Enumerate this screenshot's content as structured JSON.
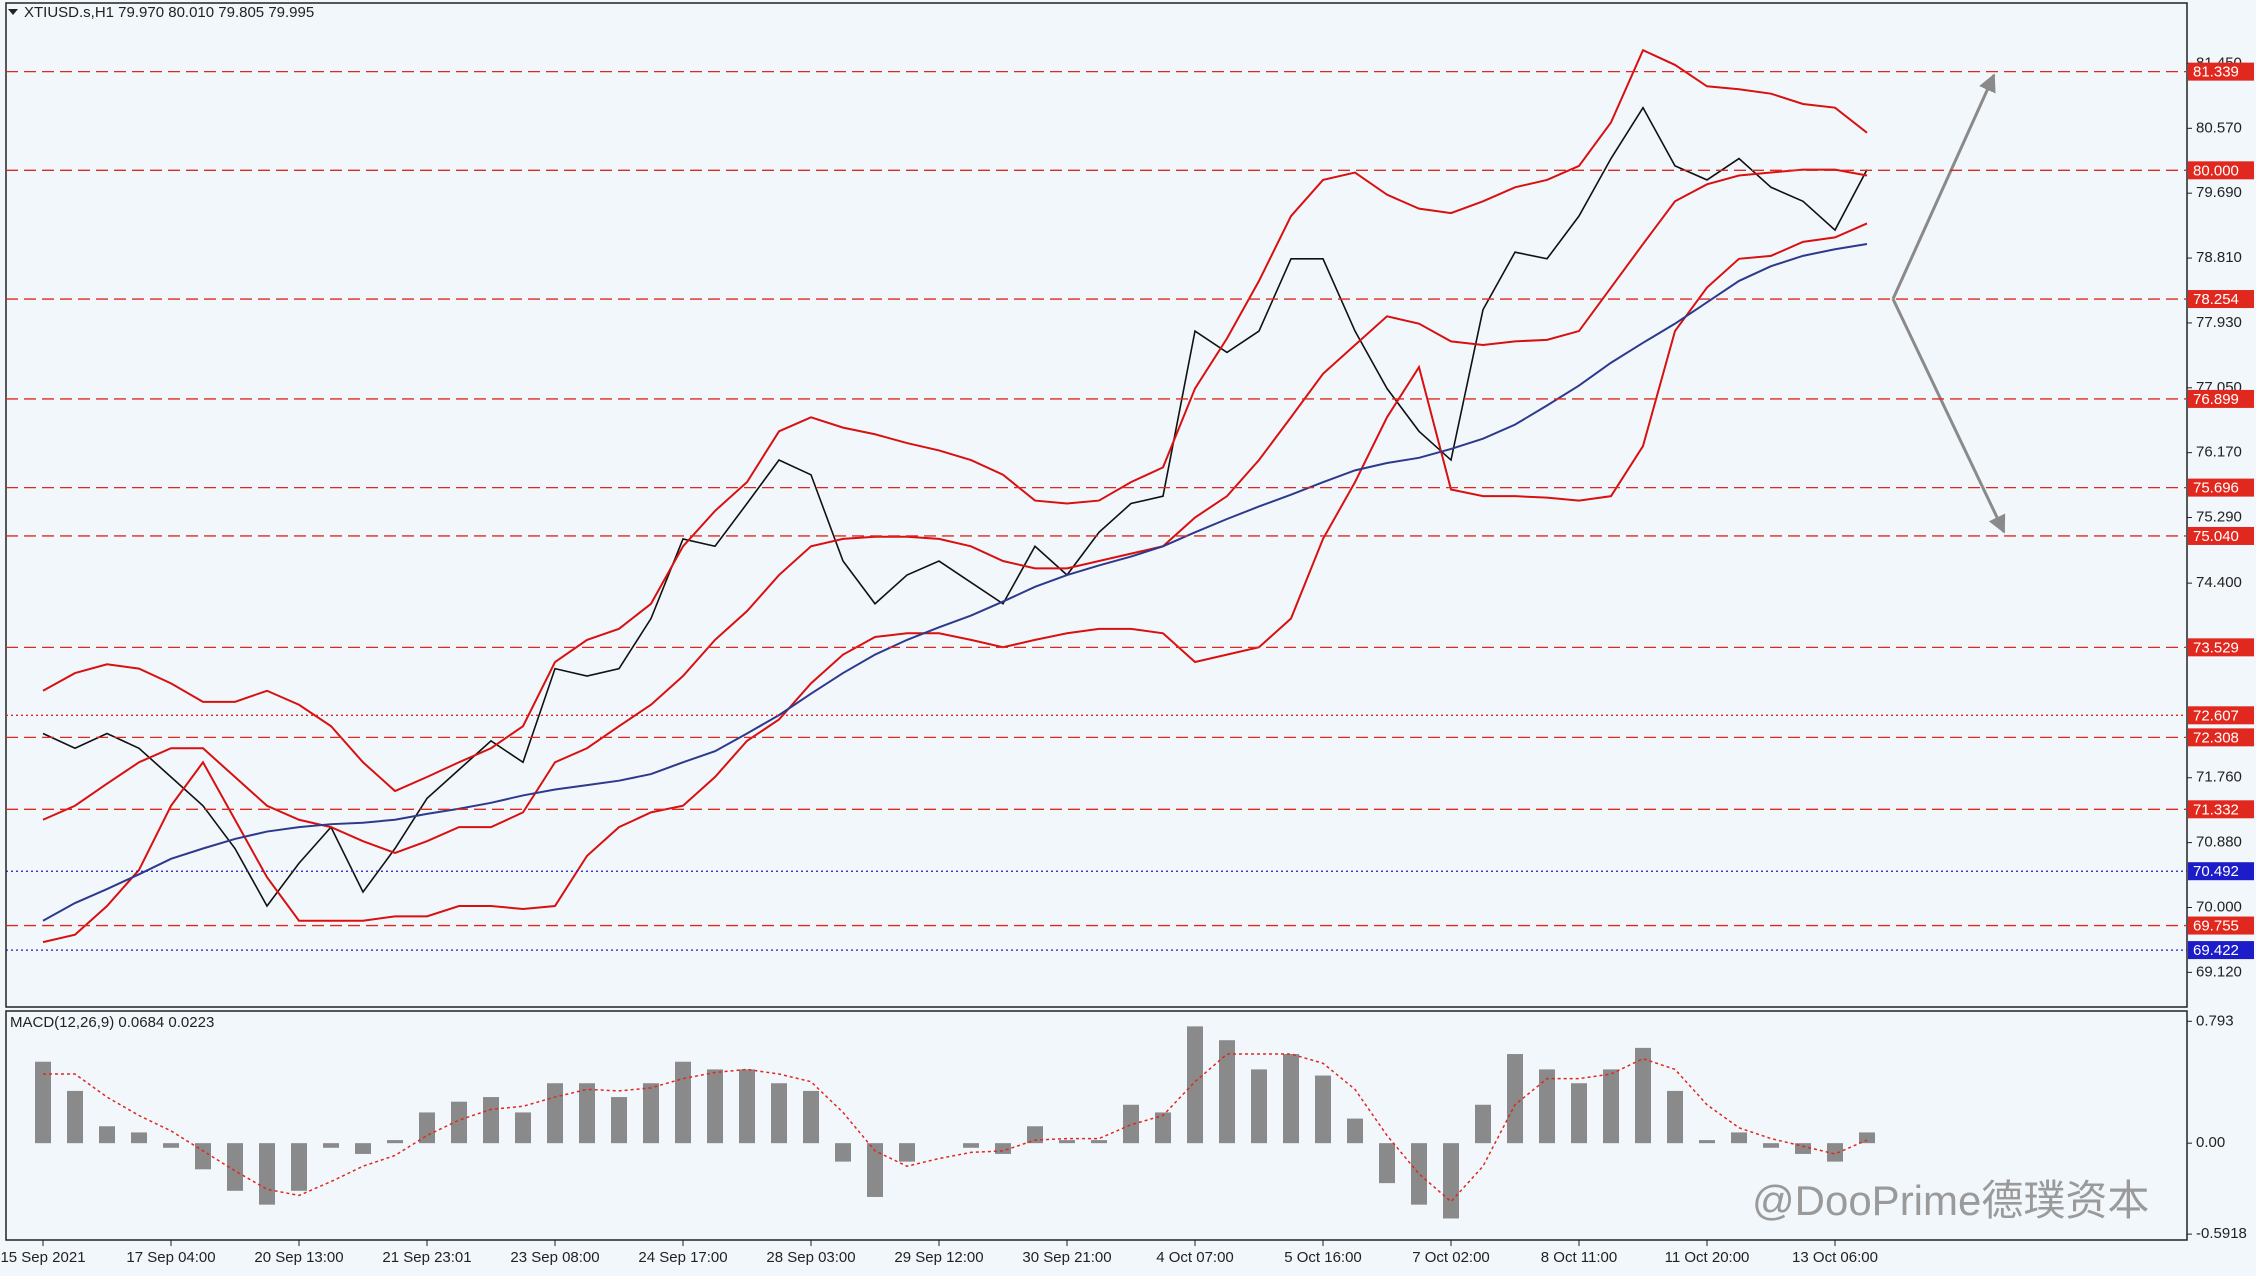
{
  "chart_data": [
    {
      "type": "line",
      "title": "XTIUSD.s,H1  79.970 80.010 79.805 79.995",
      "watermark": "@DooPrime德璞资本",
      "categories": [
        "15 Sep 2021",
        null,
        null,
        null,
        "17 Sep 04:00",
        null,
        null,
        null,
        "20 Sep 13:00",
        null,
        null,
        null,
        "21 Sep 23:01",
        null,
        null,
        null,
        "23 Sep 08:00",
        null,
        null,
        null,
        "24 Sep 17:00",
        null,
        null,
        null,
        "28 Sep 03:00",
        null,
        null,
        null,
        "29 Sep 12:00",
        null,
        null,
        null,
        "30 Sep 21:00",
        null,
        null,
        null,
        "4 Oct 07:00",
        null,
        null,
        null,
        "5 Oct 16:00",
        null,
        null,
        null,
        "7 Oct 02:00",
        null,
        null,
        null,
        "8 Oct 11:00",
        null,
        null,
        null,
        "11 Oct 20:00",
        null,
        null,
        null,
        "13 Oct 06:00",
        null
      ],
      "series": [
        {
          "color": "#111111",
          "values": [
            72.36,
            72.16,
            72.36,
            72.16,
            71.77,
            71.38,
            70.8,
            70.02,
            70.6,
            71.09,
            70.21,
            70.8,
            71.48,
            71.87,
            72.26,
            71.97,
            73.24,
            73.14,
            73.24,
            73.92,
            75.0,
            74.9,
            75.48,
            76.07,
            75.87,
            74.7,
            74.12,
            74.51,
            74.7,
            74.41,
            74.12,
            74.9,
            74.51,
            75.09,
            75.48,
            75.58,
            77.82,
            77.53,
            77.82,
            78.8,
            78.8,
            77.82,
            77.04,
            76.46,
            76.07,
            78.11,
            78.89,
            78.8,
            79.38,
            80.16,
            80.85,
            80.06,
            79.87,
            80.16,
            79.77,
            79.58,
            79.19,
            80.01
          ]
        },
        {
          "color": "#d81010",
          "values": [
            72.94,
            73.18,
            73.3,
            73.24,
            73.04,
            72.79,
            72.79,
            72.94,
            72.75,
            72.46,
            71.97,
            71.58,
            71.77,
            71.97,
            72.16,
            72.46,
            73.33,
            73.63,
            73.78,
            74.12,
            74.9,
            75.38,
            75.77,
            76.46,
            76.65,
            76.51,
            76.42,
            76.3,
            76.2,
            76.07,
            75.87,
            75.52,
            75.48,
            75.52,
            75.77,
            75.97,
            77.04,
            77.72,
            78.5,
            79.38,
            79.87,
            79.97,
            79.67,
            79.48,
            79.42,
            79.58,
            79.77,
            79.87,
            80.06,
            80.65,
            81.63,
            81.43,
            81.14,
            81.1,
            81.04,
            80.9,
            80.85,
            80.51
          ]
        },
        {
          "color": "#d81010",
          "values": [
            71.19,
            71.38,
            71.68,
            71.97,
            72.16,
            72.16,
            71.77,
            71.38,
            71.19,
            71.09,
            70.9,
            70.74,
            70.9,
            71.09,
            71.09,
            71.29,
            71.97,
            72.16,
            72.46,
            72.75,
            73.14,
            73.63,
            74.02,
            74.51,
            74.9,
            75.0,
            75.03,
            75.03,
            75.0,
            74.9,
            74.7,
            74.6,
            74.6,
            74.7,
            74.8,
            74.9,
            75.29,
            75.58,
            76.07,
            76.65,
            77.24,
            77.63,
            78.02,
            77.92,
            77.68,
            77.63,
            77.68,
            77.7,
            77.82,
            78.41,
            79.0,
            79.58,
            79.81,
            79.93,
            79.97,
            80.01,
            80.01,
            79.93
          ]
        },
        {
          "color": "#d81010",
          "values": [
            69.53,
            69.63,
            70.02,
            70.51,
            71.38,
            71.97,
            71.19,
            70.41,
            69.82,
            69.82,
            69.82,
            69.88,
            69.88,
            70.02,
            70.02,
            69.98,
            70.02,
            70.7,
            71.09,
            71.29,
            71.38,
            71.77,
            72.26,
            72.55,
            73.04,
            73.43,
            73.67,
            73.72,
            73.72,
            73.63,
            73.53,
            73.63,
            73.72,
            73.78,
            73.78,
            73.72,
            73.33,
            73.43,
            73.53,
            73.92,
            75.0,
            75.77,
            76.65,
            77.33,
            75.67,
            75.58,
            75.58,
            75.56,
            75.52,
            75.58,
            76.26,
            77.82,
            78.41,
            78.8,
            78.84,
            79.03,
            79.09,
            79.28
          ]
        },
        {
          "color": "#2d3a8c",
          "values": [
            69.82,
            70.06,
            70.25,
            70.45,
            70.66,
            70.8,
            70.93,
            71.03,
            71.09,
            71.13,
            71.15,
            71.19,
            71.27,
            71.34,
            71.42,
            71.52,
            71.6,
            71.66,
            71.72,
            71.81,
            71.97,
            72.12,
            72.36,
            72.61,
            72.9,
            73.18,
            73.43,
            73.63,
            73.8,
            73.96,
            74.15,
            74.35,
            74.51,
            74.64,
            74.76,
            74.9,
            75.09,
            75.27,
            75.44,
            75.6,
            75.77,
            75.93,
            76.03,
            76.1,
            76.22,
            76.36,
            76.55,
            76.81,
            77.08,
            77.39,
            77.66,
            77.92,
            78.21,
            78.5,
            78.7,
            78.84,
            78.93,
            79.0
          ]
        }
      ],
      "levels": {
        "values": [
          81.339,
          80.0,
          78.254,
          76.899,
          75.696,
          75.04,
          73.529,
          72.607,
          72.308,
          71.332,
          70.492,
          69.755,
          69.422
        ],
        "value_labels": [
          "81.339",
          "80.000",
          "78.254",
          "76.899",
          "75.696",
          "75.040",
          "73.529",
          "72.607",
          "72.308",
          "71.332",
          "70.492",
          "69.755",
          "69.422"
        ],
        "colors": [
          "#e0281e",
          "#e0281e",
          "#e0281e",
          "#e0281e",
          "#e0281e",
          "#e0281e",
          "#e0281e",
          "#e0281e",
          "#e0281e",
          "#e0281e",
          "#1c1cc8",
          "#e0281e",
          "#1c1cc8"
        ],
        "styles": [
          "dashed",
          "dashed",
          "dashed",
          "dashed",
          "dashed",
          "dashed",
          "dashed",
          "dotted",
          "dashed",
          "dashed",
          "dotted",
          "dashed",
          "dotted"
        ]
      },
      "ylim": [
        68.65,
        82.27
      ],
      "yticks": [
        {
          "value": 81.45,
          "label": "81.450"
        },
        {
          "value": 80.57,
          "label": "80.570"
        },
        {
          "value": 79.69,
          "label": "79.690"
        },
        {
          "value": 78.81,
          "label": "78.810"
        },
        {
          "value": 77.93,
          "label": "77.930"
        },
        {
          "value": 77.05,
          "label": "77.050"
        },
        {
          "value": 76.17,
          "label": "76.170"
        },
        {
          "value": 75.29,
          "label": "75.290"
        },
        {
          "value": 74.4,
          "label": "74.400"
        },
        {
          "value": 71.76,
          "label": "71.760"
        },
        {
          "value": 70.88,
          "label": "70.880"
        },
        {
          "value": 70,
          "label": "70.000"
        },
        {
          "value": 69.12,
          "label": "69.120"
        }
      ]
    },
    {
      "type": "bar",
      "title": "MACD(12,26,9) 0.0684 0.0223",
      "color": "#8a8a8a",
      "values": [
        0.53,
        0.34,
        0.11,
        0.07,
        -0.03,
        -0.17,
        -0.31,
        -0.4,
        -0.31,
        -0.03,
        -0.07,
        0.02,
        0.2,
        0.27,
        0.3,
        0.2,
        0.39,
        0.39,
        0.3,
        0.39,
        0.53,
        0.48,
        0.48,
        0.39,
        0.34,
        -0.12,
        -0.35,
        -0.12,
        0.0,
        -0.03,
        -0.07,
        0.11,
        0.02,
        0.02,
        0.25,
        0.2,
        0.76,
        0.67,
        0.48,
        0.58,
        0.44,
        0.16,
        -0.26,
        -0.4,
        -0.49,
        0.25,
        0.58,
        0.48,
        0.39,
        0.48,
        0.62,
        0.34,
        0.02,
        0.07,
        -0.03,
        -0.07,
        -0.12,
        0.07
      ],
      "signal": {
        "color": "#e0281e",
        "values": [
          0.45,
          0.45,
          0.3,
          0.18,
          0.08,
          -0.05,
          -0.18,
          -0.3,
          -0.34,
          -0.25,
          -0.15,
          -0.08,
          0.05,
          0.15,
          0.22,
          0.24,
          0.3,
          0.35,
          0.34,
          0.36,
          0.42,
          0.46,
          0.48,
          0.45,
          0.4,
          0.2,
          -0.05,
          -0.15,
          -0.1,
          -0.06,
          -0.05,
          0.02,
          0.03,
          0.03,
          0.12,
          0.18,
          0.4,
          0.58,
          0.58,
          0.58,
          0.52,
          0.35,
          0.05,
          -0.2,
          -0.38,
          -0.15,
          0.25,
          0.42,
          0.42,
          0.45,
          0.55,
          0.48,
          0.25,
          0.1,
          0.03,
          -0.02,
          -0.07,
          0.02
        ]
      },
      "ylim": [
        -0.63,
        0.86
      ],
      "yticks": [
        0.793,
        {
          "value": 0,
          "label": "0.00"
        },
        -0.5918
      ]
    }
  ]
}
